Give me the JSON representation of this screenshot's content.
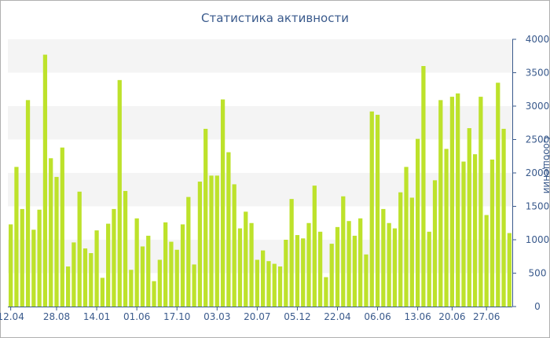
{
  "chart_data": {
    "type": "bar",
    "title": "Статистика активности",
    "ylabel": "Сообщений",
    "ylim": [
      0,
      4000
    ],
    "yticks": [
      0,
      500,
      1000,
      1500,
      2000,
      2500,
      3000,
      3500,
      4000
    ],
    "xtick_labels": [
      "12.04",
      "28.08",
      "14.01",
      "01.06",
      "17.10",
      "03.03",
      "20.07",
      "05.12",
      "22.04",
      "06.06",
      "13.06",
      "20.06",
      "27.06"
    ],
    "xtick_bar_index": [
      0,
      8,
      15,
      22,
      29,
      36,
      43,
      50,
      57,
      64,
      71,
      77,
      83
    ],
    "bar_color": "#bde22b",
    "band_color": "#f4f4f4",
    "axis_color": "#3a5a8c",
    "values": [
      1230,
      2090,
      1460,
      3090,
      1150,
      1450,
      3770,
      2220,
      1940,
      2380,
      600,
      960,
      1720,
      870,
      800,
      1140,
      430,
      1240,
      1460,
      3390,
      1730,
      550,
      1320,
      900,
      1060,
      380,
      700,
      1260,
      970,
      850,
      1230,
      1640,
      630,
      1870,
      2660,
      1960,
      1960,
      3100,
      2310,
      1830,
      1170,
      1420,
      1250,
      700,
      840,
      680,
      640,
      600,
      1000,
      1610,
      1070,
      1020,
      1250,
      1810,
      1120,
      440,
      940,
      1190,
      1650,
      1280,
      1060,
      1320,
      780,
      2920,
      2870,
      1460,
      1250,
      1170,
      1710,
      2090,
      1630,
      2510,
      3600,
      1120,
      1890,
      3090,
      2360,
      3140,
      3190,
      2170,
      2670,
      2280,
      3140,
      1370,
      2200,
      3350,
      2660,
      1100
    ]
  }
}
